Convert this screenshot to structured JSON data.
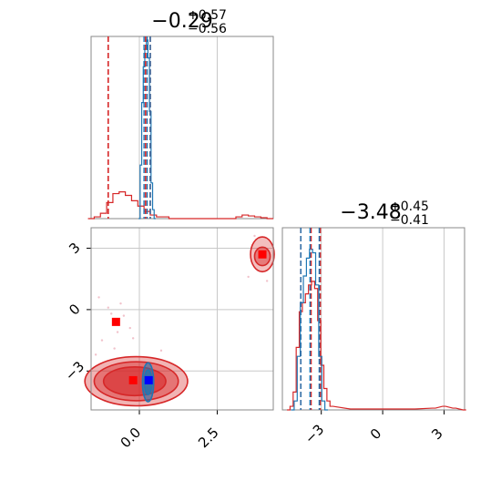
{
  "chart_data": [
    {
      "type": "histogram",
      "panel": "top-left",
      "title_main": "−0.29",
      "title_sup": "+0.57",
      "title_sub": "−0.56",
      "xlim": [
        -1.55,
        4.3
      ],
      "grid": true,
      "quantile_lines": {
        "red": [
          -1.0,
          0.2,
          0.35
        ],
        "blue": [
          0.15,
          0.25,
          0.35
        ]
      },
      "series": [
        {
          "name": "",
          "color": "#d62728",
          "x": [
            -1.55,
            -1.35,
            -1.15,
            -0.95,
            -0.75,
            -0.55,
            -0.35,
            -0.15,
            0.05,
            0.25,
            0.45,
            0.65,
            0.85,
            1.05,
            3.0,
            3.2,
            3.4,
            3.6,
            3.8,
            4.0,
            4.2
          ],
          "y": [
            0.0,
            0.01,
            0.03,
            0.09,
            0.14,
            0.15,
            0.13,
            0.1,
            0.07,
            0.04,
            0.02,
            0.01,
            0.01,
            0.0,
            0.0,
            0.01,
            0.02,
            0.015,
            0.01,
            0.005,
            0.0
          ]
        },
        {
          "name": "",
          "color": "#1f77b4",
          "x": [
            0.0,
            0.05,
            0.1,
            0.15,
            0.2,
            0.25,
            0.3,
            0.35,
            0.4,
            0.45,
            0.5
          ],
          "y": [
            0.0,
            0.3,
            0.65,
            0.85,
            0.95,
            1.0,
            0.9,
            0.6,
            0.2,
            0.05,
            0.0
          ]
        }
      ]
    },
    {
      "type": "histogram",
      "panel": "bottom-right",
      "title_main": "−3.48",
      "title_sup": "+0.45",
      "title_sub": "−0.41",
      "xlim": [
        -4.9,
        4.0
      ],
      "xticks": [
        -3,
        0,
        3
      ],
      "xtick_labels": [
        "−3",
        "0",
        "3"
      ],
      "grid": true,
      "quantile_lines": {
        "red": [
          -4.0,
          -3.5,
          -3.05
        ],
        "blue": [
          -4.0,
          -3.55,
          -3.1
        ]
      },
      "series": [
        {
          "name": "",
          "color": "#d62728",
          "x": [
            -4.6,
            -4.45,
            -4.3,
            -4.15,
            -4.0,
            -3.85,
            -3.7,
            -3.55,
            -3.4,
            -3.25,
            -3.1,
            -2.95,
            -2.8,
            -2.65,
            -2.5,
            -1.5,
            0,
            1.5,
            2.5,
            3.0,
            3.5,
            4.0
          ],
          "y": [
            0.0,
            0.02,
            0.1,
            0.35,
            0.55,
            0.6,
            0.65,
            0.7,
            0.72,
            0.68,
            0.5,
            0.25,
            0.12,
            0.05,
            0.02,
            0.005,
            0.005,
            0.005,
            0.01,
            0.02,
            0.01,
            0.0
          ]
        },
        {
          "name": "",
          "color": "#1f77b4",
          "x": [
            -4.4,
            -4.25,
            -4.1,
            -3.95,
            -3.8,
            -3.65,
            -3.5,
            -3.35,
            -3.2,
            -3.05,
            -2.9,
            -2.75
          ],
          "y": [
            0.0,
            0.05,
            0.3,
            0.6,
            0.75,
            0.85,
            0.9,
            0.88,
            0.7,
            0.3,
            0.05,
            0.0
          ]
        }
      ]
    },
    {
      "type": "contour",
      "panel": "bottom-left",
      "xlim": [
        -1.55,
        4.3
      ],
      "ylim": [
        -4.9,
        4.0
      ],
      "xticks": [
        0.0,
        2.5
      ],
      "xtick_labels": [
        "0.0",
        "2.5"
      ],
      "yticks": [
        -3,
        0,
        3
      ],
      "ytick_labels": [
        "−3",
        "0",
        "3"
      ],
      "grid": true,
      "markers": [
        {
          "color": "#ff0000",
          "x": -0.75,
          "y": -0.6
        },
        {
          "color": "#ff0000",
          "x": -0.2,
          "y": -3.45
        },
        {
          "color": "#ff0000",
          "x": 3.95,
          "y": 2.7
        },
        {
          "color": "#0000ff",
          "x": 0.3,
          "y": -3.45
        }
      ],
      "contours": [
        {
          "color": "#d62728",
          "cx": -0.1,
          "cy": -3.5,
          "rx": 1.65,
          "ry": 1.2,
          "fill_opacity": 0.35
        },
        {
          "color": "#d62728",
          "cx": -0.1,
          "cy": -3.5,
          "rx": 1.35,
          "ry": 0.95,
          "fill_opacity": 0.45
        },
        {
          "color": "#d62728",
          "cx": -0.15,
          "cy": -3.5,
          "rx": 1.0,
          "ry": 0.7,
          "fill_opacity": 0.6
        },
        {
          "color": "#d62728",
          "cx": 3.95,
          "cy": 2.7,
          "rx": 0.38,
          "ry": 0.85,
          "fill_opacity": 0.3
        },
        {
          "color": "#d62728",
          "cx": 3.95,
          "cy": 2.6,
          "rx": 0.25,
          "ry": 0.45,
          "fill_opacity": 0.45
        },
        {
          "color": "#1f77b4",
          "cx": 0.28,
          "cy": -3.55,
          "rx": 0.18,
          "ry": 0.95,
          "fill_opacity": 0.55
        },
        {
          "color": "#1f77b4",
          "cx": 0.28,
          "cy": -3.55,
          "rx": 0.12,
          "ry": 0.6,
          "fill_opacity": 0.7
        }
      ]
    }
  ]
}
